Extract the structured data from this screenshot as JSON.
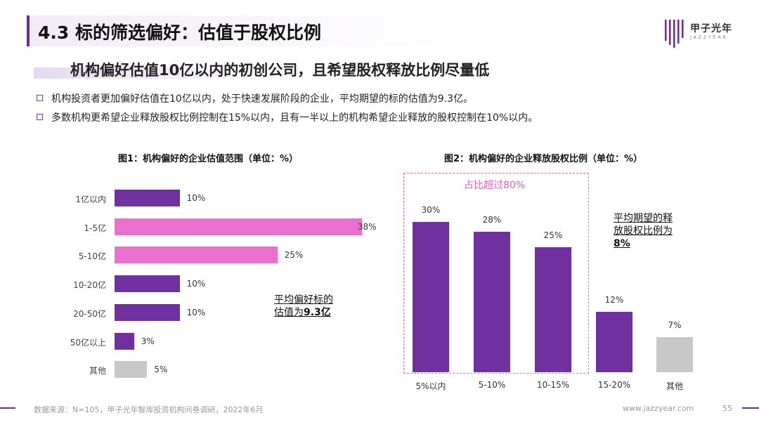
{
  "header": {
    "title": "4.3 标的筛选偏好：估值于股权比例",
    "logo_text": "甲子光年",
    "logo_sub": "JAZZYEAR"
  },
  "subtitle": "机构偏好估值10亿以内的初创公司，且希望股权释放比例尽量低",
  "bullets": [
    "机构投资者更加偏好估值在10亿以内，处于快速发展阶段的企业，平均期望的标的估值为9.3亿。",
    "多数机构更希望企业释放股权比例控制在15%以内，且有一半以上的机构希望企业释放的股权控制在10%以内。"
  ],
  "colors": {
    "purple": "#7030a0",
    "pink": "#ea6fcf",
    "gray": "#c8c8c8",
    "accent": "#6a2da0"
  },
  "chart_data": [
    {
      "type": "bar",
      "orientation": "horizontal",
      "title": "图1：机构偏好的企业估值范围（单位：%）",
      "categories": [
        "1亿以内",
        "1-5亿",
        "5-10亿",
        "10-20亿",
        "20-50亿",
        "50亿以上",
        "其他"
      ],
      "values": [
        10,
        38,
        25,
        10,
        10,
        3,
        5
      ],
      "value_labels": [
        "10%",
        "38%",
        "25%",
        "10%",
        "10%",
        "3%",
        "5%"
      ],
      "bar_colors": [
        "#7030a0",
        "#ea6fcf",
        "#ea6fcf",
        "#7030a0",
        "#7030a0",
        "#7030a0",
        "#c8c8c8"
      ],
      "xlim": [
        0,
        40
      ],
      "annotation_line1": "平均偏好标的",
      "annotation_line2_prefix": "估值为",
      "annotation_line2_value": "9.3亿"
    },
    {
      "type": "bar",
      "orientation": "vertical",
      "title": "图2：机构偏好的企业释放股权比例（单位：%）",
      "categories": [
        "5%以内",
        "5-10%",
        "10-15%",
        "15-20%",
        "其他"
      ],
      "values": [
        30,
        28,
        25,
        12,
        7
      ],
      "value_labels": [
        "30%",
        "28%",
        "25%",
        "12%",
        "7%"
      ],
      "bar_colors": [
        "#7030a0",
        "#7030a0",
        "#7030a0",
        "#7030a0",
        "#c8c8c8"
      ],
      "ylim": [
        0,
        35
      ],
      "highlight_label": "占比超过80%",
      "annotation_line1": "平均期望的释",
      "annotation_line2": "放股权比例为",
      "annotation_line3": "8%"
    }
  ],
  "footer": {
    "source": "数据来源：N=105，甲子光年智库投资机构问卷调研，2022年6月",
    "site": "www.jazzyear.com",
    "page": "55"
  }
}
